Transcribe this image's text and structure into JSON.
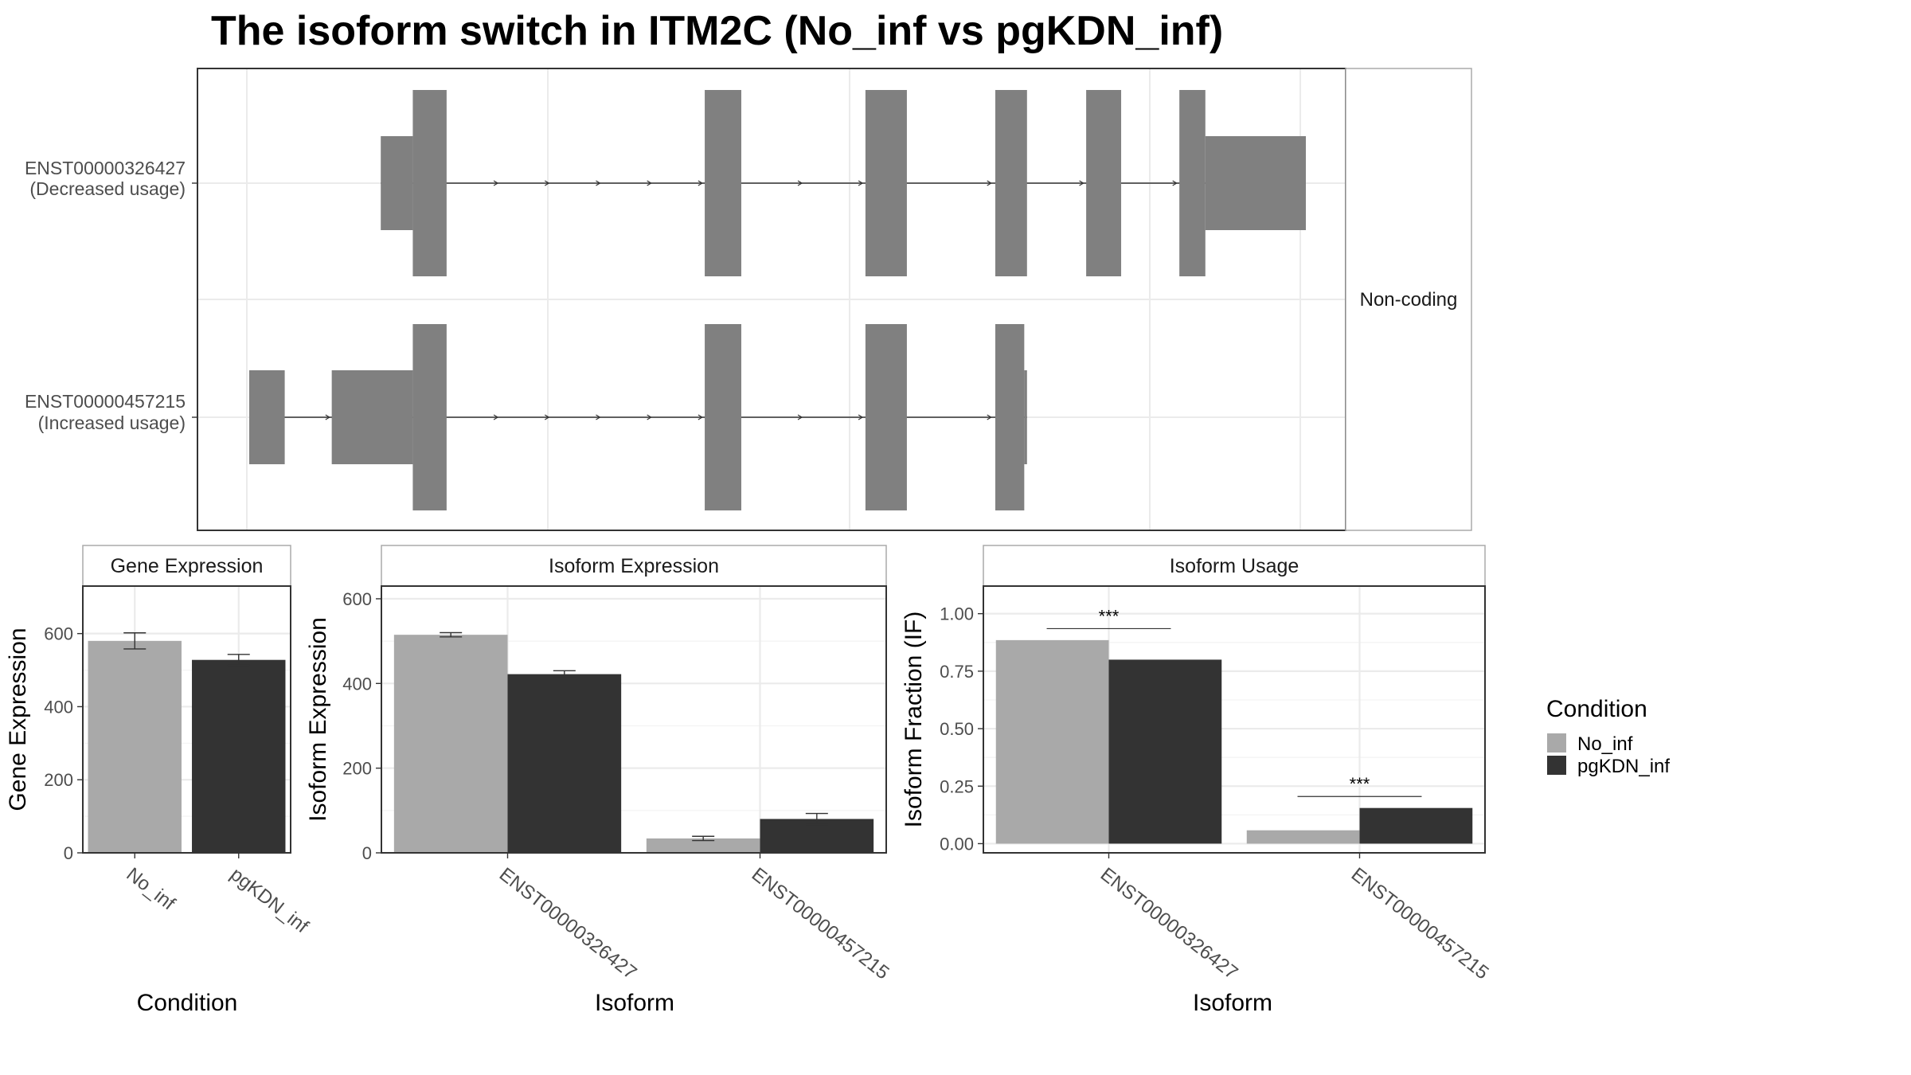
{
  "title": "The isoform switch in ITM2C (No_inf vs pgKDN_inf)",
  "colors": {
    "exon": "#808080",
    "No_inf": "#a9a9a9",
    "pgKDN_inf": "#333333",
    "grid": "#ebebeb",
    "strip_bg": "#ffffff",
    "panel_border": "#333333",
    "axis_text": "#4d4d4d"
  },
  "chart_data": [
    {
      "type": "gene-structure",
      "facet_label": "Non-coding",
      "isoforms": [
        {
          "id": "ENST00000326427",
          "label": "ENST00000326427",
          "usage_note": "(Decreased usage)",
          "exons": [
            {
              "start": 0.1245,
              "end": 0.1548,
              "height": "utr"
            },
            {
              "start": 0.1548,
              "end": 0.1868,
              "height": "cds"
            },
            {
              "start": 0.4311,
              "end": 0.4657,
              "height": "cds"
            },
            {
              "start": 0.5832,
              "end": 0.6224,
              "height": "cds"
            },
            {
              "start": 0.7061,
              "end": 0.7361,
              "height": "cds"
            },
            {
              "start": 0.7921,
              "end": 0.8252,
              "height": "cds"
            },
            {
              "start": 0.8803,
              "end": 0.9049,
              "height": "cds"
            },
            {
              "start": 0.9049,
              "end": 1.0,
              "height": "utr"
            }
          ]
        },
        {
          "id": "ENST00000457215",
          "label": "ENST00000457215",
          "usage_note": "(Increased usage)",
          "exons": [
            {
              "start": 0.0,
              "end": 0.0336,
              "height": "utr"
            },
            {
              "start": 0.0781,
              "end": 0.1548,
              "height": "utr"
            },
            {
              "start": 0.1548,
              "end": 0.1868,
              "height": "cds"
            },
            {
              "start": 0.4311,
              "end": 0.4657,
              "height": "cds"
            },
            {
              "start": 0.5832,
              "end": 0.6224,
              "height": "cds"
            },
            {
              "start": 0.7061,
              "end": 0.7335,
              "height": "cds"
            },
            {
              "start": 0.7335,
              "end": 0.7361,
              "height": "utr"
            }
          ]
        }
      ]
    },
    {
      "type": "bar",
      "strip": "Gene Expression",
      "xlabel": "Condition",
      "ylabel": "Gene Expression",
      "categories": [
        "No_inf",
        "pgKDN_inf"
      ],
      "values": [
        580,
        528
      ],
      "errors": [
        22,
        15
      ],
      "ylim": [
        0,
        730
      ],
      "yticks": [
        0,
        200,
        400,
        600
      ]
    },
    {
      "type": "bar",
      "strip": "Isoform Expression",
      "xlabel": "Isoform",
      "ylabel": "Isoform Expression",
      "categories": [
        "ENST00000326427",
        "ENST00000457215"
      ],
      "series": [
        {
          "name": "No_inf",
          "values": [
            515,
            34
          ],
          "errors": [
            5,
            5
          ]
        },
        {
          "name": "pgKDN_inf",
          "values": [
            422,
            80
          ],
          "errors": [
            8,
            13
          ]
        }
      ],
      "ylim": [
        0,
        630
      ],
      "yticks": [
        0,
        200,
        400,
        600
      ]
    },
    {
      "type": "bar",
      "strip": "Isoform Usage",
      "xlabel": "Isoform",
      "ylabel": "Isoform Fraction (IF)",
      "categories": [
        "ENST00000326427",
        "ENST00000457215"
      ],
      "series": [
        {
          "name": "No_inf",
          "values": [
            0.885,
            0.058
          ]
        },
        {
          "name": "pgKDN_inf",
          "values": [
            0.8,
            0.155
          ]
        }
      ],
      "significance": [
        {
          "category": "ENST00000326427",
          "label": "***",
          "y": 0.935
        },
        {
          "category": "ENST00000457215",
          "label": "***",
          "y": 0.205
        }
      ],
      "ylim": [
        -0.04,
        1.12
      ],
      "yticks": [
        0.0,
        0.25,
        0.5,
        0.75,
        1.0
      ],
      "ytick_labels": [
        "0.00",
        "0.25",
        "0.50",
        "0.75",
        "1.00"
      ]
    }
  ],
  "legend": {
    "title": "Condition",
    "items": [
      {
        "name": "No_inf",
        "color": "#a9a9a9"
      },
      {
        "name": "pgKDN_inf",
        "color": "#333333"
      }
    ]
  }
}
